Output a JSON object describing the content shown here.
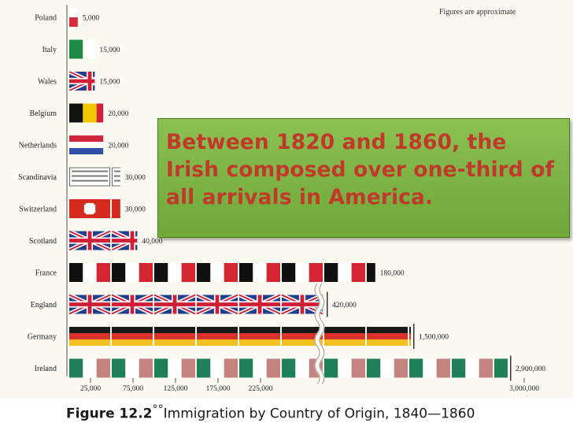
{
  "note": "Figures are approximate",
  "callout": "Between 1820 and 1860, the Irish composed over one-third of all arrivals in America.",
  "caption": {
    "figure_number": "Figure 12.2",
    "marks": "°°",
    "text": "Immigration by Country of Origin, 1840—1860"
  },
  "chart_data": {
    "type": "bar",
    "title": "Immigration by Country of Origin, 1840—1860",
    "note": "Figures are approximate",
    "categories": [
      "Poland",
      "Italy",
      "Wales",
      "Belgium",
      "Netherlands",
      "Scandinavia",
      "Switzerland",
      "Scotland",
      "France",
      "England",
      "Germany",
      "Ireland"
    ],
    "values": [
      5000,
      15000,
      15000,
      20000,
      20000,
      30000,
      30000,
      40000,
      180000,
      420000,
      1500000,
      2900000
    ],
    "value_labels": [
      "5,000",
      "15,000",
      "15,000",
      "20,000",
      "20,000",
      "30,000",
      "30,000",
      "40,000",
      "180,000",
      "420,000",
      "1,500,000",
      "2,900,000"
    ],
    "flags": [
      "poland",
      "italy",
      "union-jack",
      "belgium",
      "netherlands",
      "scandinavia",
      "switzerland",
      "union-jack",
      "france",
      "union-jack",
      "germany",
      "ireland"
    ],
    "x_ticks": [
      "25,000",
      "75,000",
      "125,000",
      "175,000",
      "225,000",
      "3,000,000"
    ],
    "axis_break": true
  }
}
